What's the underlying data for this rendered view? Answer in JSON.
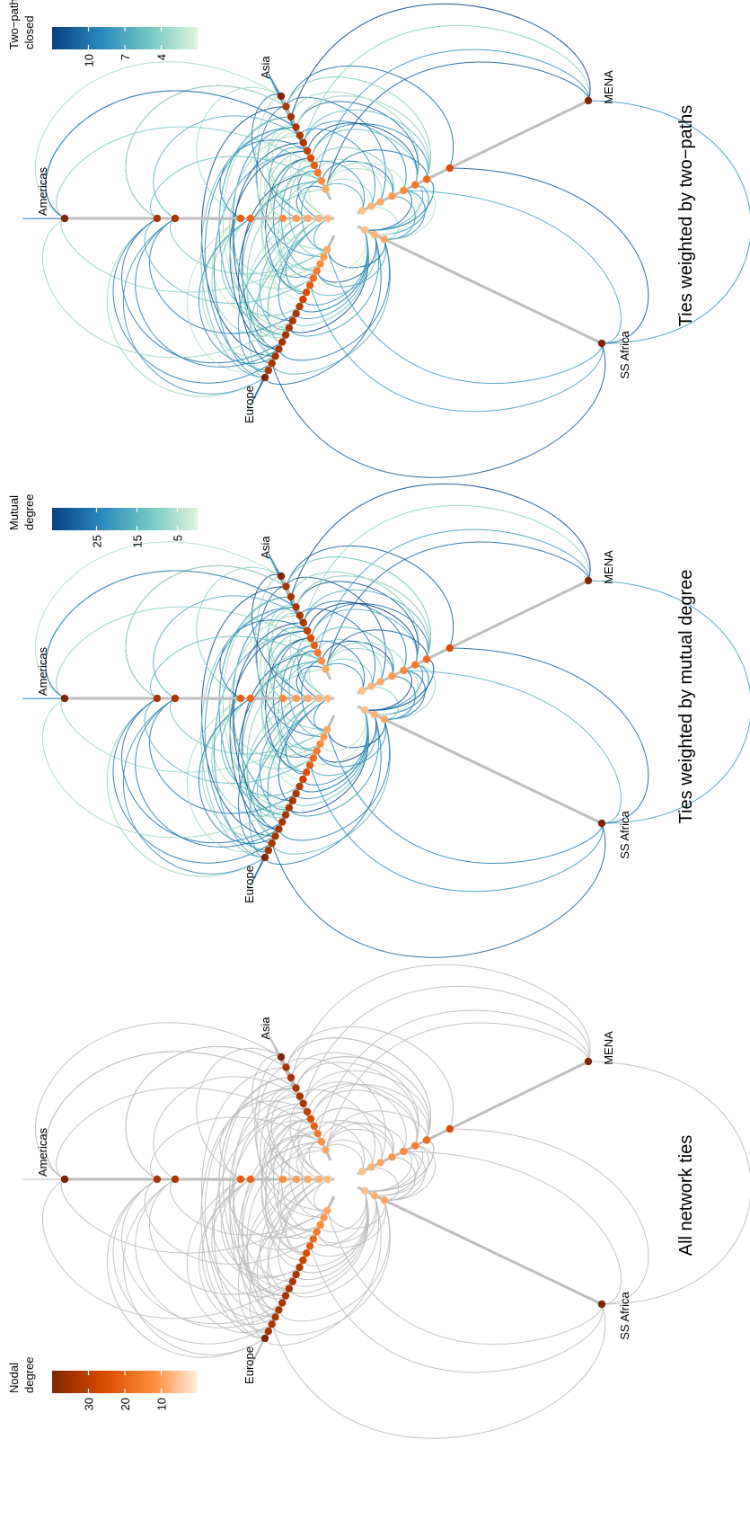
{
  "panels": [
    {
      "title": "All network ties",
      "legend": {
        "title": [
          "Nodal",
          "degree"
        ],
        "lim": [
          40,
          0
        ],
        "ticks": [
          30,
          20,
          10
        ]
      }
    },
    {
      "title": "Ties weighted by mutual degree",
      "legend": {
        "title": [
          "Mutual",
          "degree"
        ],
        "lim": [
          36,
          0
        ],
        "ticks": [
          25,
          15,
          5
        ]
      }
    },
    {
      "title": "Ties weighted by two−paths",
      "legend": {
        "title": [
          "Two−paths",
          "closed"
        ],
        "lim": [
          13,
          1
        ],
        "ticks": [
          10,
          7,
          4
        ]
      }
    }
  ],
  "axis_labels": [
    "Americas",
    "Europe",
    "Asia",
    "MENA",
    "SS Africa"
  ]
}
